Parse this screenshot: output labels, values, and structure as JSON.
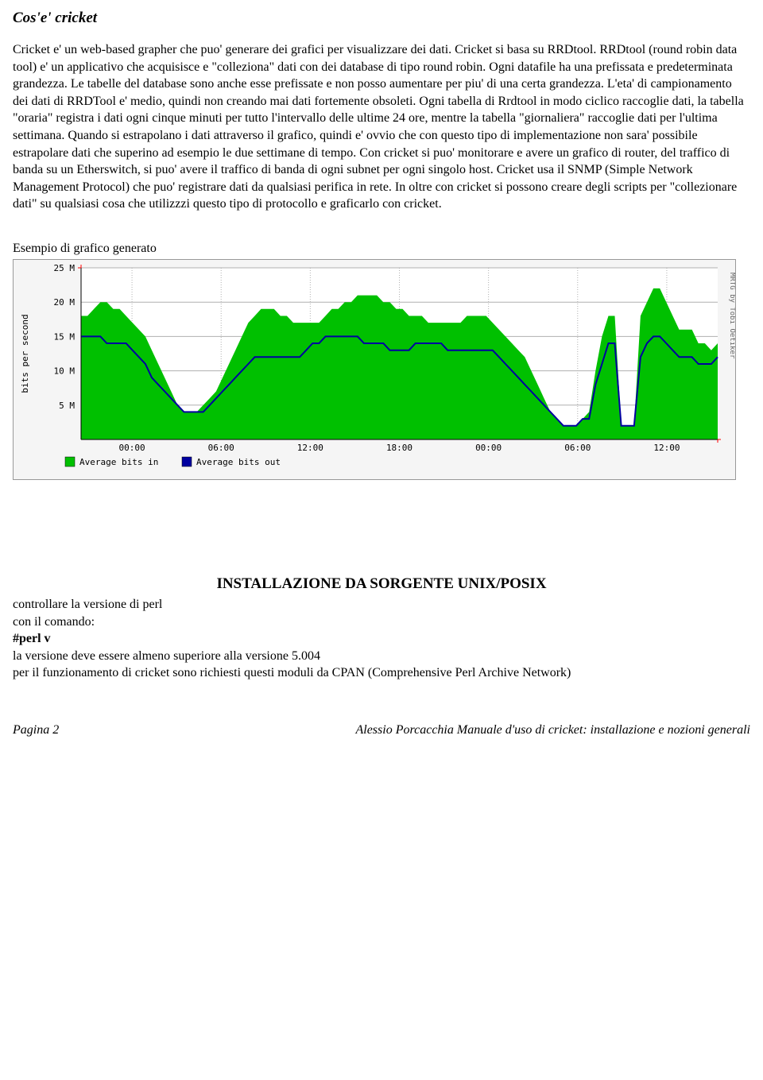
{
  "title": "Cos'e' cricket",
  "body_text": "Cricket e' un web-based grapher che puo' generare dei grafici per visualizzare dei dati. Cricket si basa su RRDtool. RRDtool (round robin data tool) e' un applicativo che acquisisce e \"colleziona\" dati con dei database di tipo round robin. Ogni datafile ha una prefissata e predeterminata grandezza. Le tabelle del database sono anche esse prefissate e non posso aumentare per piu' di una certa grandezza. L'eta' di campionamento dei dati di RRDTool e' medio, quindi non creando mai dati fortemente obsoleti. Ogni tabella di Rrdtool in modo ciclico raccoglie dati, la tabella \"oraria\" registra i dati ogni cinque minuti per tutto l'intervallo delle ultime 24 ore, mentre la tabella \"giornaliera\" raccoglie dati per l'ultima settimana. Quando si estrapolano i dati attraverso il grafico, quindi e' ovvio che con questo tipo di implementazione non sara' possibile estrapolare dati che superino ad esempio le due settimane di tempo.\nCon cricket si puo' monitorare e avere un grafico di router, del traffico di banda su un Etherswitch, si puo' avere il traffico di banda di ogni subnet per ogni singolo host. Cricket usa il SNMP (Simple Network Management Protocol) che puo' registrare dati da qualsiasi perifica in rete. In oltre con cricket si possono creare degli scripts per \"collezionare dati\" su qualsiasi cosa che utilizzzi questo tipo di protocollo e graficarlo con cricket.",
  "chart_caption": "Esempio di grafico generato",
  "chart": {
    "type": "area+line",
    "ylabel": "bits per second",
    "credit": "MRTG by Tobi Oetiker",
    "ylim": [
      0,
      25
    ],
    "yticks": [
      5,
      10,
      15,
      20,
      25
    ],
    "ytick_labels": [
      "5 M",
      "10 M",
      "15 M",
      "20 M",
      "25 M"
    ],
    "xticks": [
      "00:00",
      "06:00",
      "12:00",
      "18:00",
      "00:00",
      "06:00",
      "12:00"
    ],
    "xtick_positions": [
      0.08,
      0.22,
      0.36,
      0.5,
      0.64,
      0.78,
      0.92
    ],
    "background_color": "#f5f5f5",
    "plot_bg_color": "#ffffff",
    "grid_color": "#b0b0b0",
    "axis_color": "#000000",
    "red_tick_color": "#ff0000",
    "area": {
      "color": "#00c000",
      "values": [
        18,
        18,
        19,
        20,
        20,
        19,
        19,
        18,
        17,
        16,
        15,
        13,
        11,
        9,
        7,
        5,
        4,
        4,
        4,
        5,
        6,
        7,
        9,
        11,
        13,
        15,
        17,
        18,
        19,
        19,
        19,
        18,
        18,
        17,
        17,
        17,
        17,
        17,
        18,
        19,
        19,
        20,
        20,
        21,
        21,
        21,
        21,
        20,
        20,
        19,
        19,
        18,
        18,
        18,
        17,
        17,
        17,
        17,
        17,
        17,
        18,
        18,
        18,
        18,
        17,
        16,
        15,
        14,
        13,
        12,
        10,
        8,
        6,
        4,
        3,
        2,
        2,
        2,
        3,
        4,
        10,
        15,
        18,
        18,
        2,
        2,
        2,
        18,
        20,
        22,
        22,
        20,
        18,
        16,
        16,
        16,
        14,
        14,
        13,
        14
      ]
    },
    "line": {
      "color": "#0000a0",
      "width": 2,
      "values": [
        15,
        15,
        15,
        15,
        14,
        14,
        14,
        14,
        13,
        12,
        11,
        9,
        8,
        7,
        6,
        5,
        4,
        4,
        4,
        4,
        5,
        6,
        7,
        8,
        9,
        10,
        11,
        12,
        12,
        12,
        12,
        12,
        12,
        12,
        12,
        13,
        14,
        14,
        15,
        15,
        15,
        15,
        15,
        15,
        14,
        14,
        14,
        14,
        13,
        13,
        13,
        13,
        14,
        14,
        14,
        14,
        14,
        13,
        13,
        13,
        13,
        13,
        13,
        13,
        13,
        12,
        11,
        10,
        9,
        8,
        7,
        6,
        5,
        4,
        3,
        2,
        2,
        2,
        3,
        3,
        8,
        11,
        14,
        14,
        2,
        2,
        2,
        12,
        14,
        15,
        15,
        14,
        13,
        12,
        12,
        12,
        11,
        11,
        11,
        12
      ]
    },
    "legend": [
      {
        "swatch": "#00c000",
        "label": "Average bits in"
      },
      {
        "swatch": "#0000a0",
        "label": "Average bits out"
      }
    ],
    "font_family": "monospace",
    "font_size": 11
  },
  "install_heading": "INSTALLAZIONE DA SORGENTE UNIX/POSIX",
  "install_lines": [
    {
      "text": "controllare la versione di perl",
      "bold": false
    },
    {
      "text": "con il comando:",
      "bold": false
    },
    {
      "text": "#perl  v",
      "bold": true
    },
    {
      "text": "la versione deve essere almeno superiore alla versione 5.004",
      "bold": false
    },
    {
      "text": "per il funzionamento di cricket sono richiesti questi moduli da CPAN (Comprehensive Perl Archive Network)",
      "bold": false
    }
  ],
  "footer_left": "Pagina 2",
  "footer_right": "Alessio Porcacchia  Manuale d'uso di cricket: installazione  e nozioni generali"
}
